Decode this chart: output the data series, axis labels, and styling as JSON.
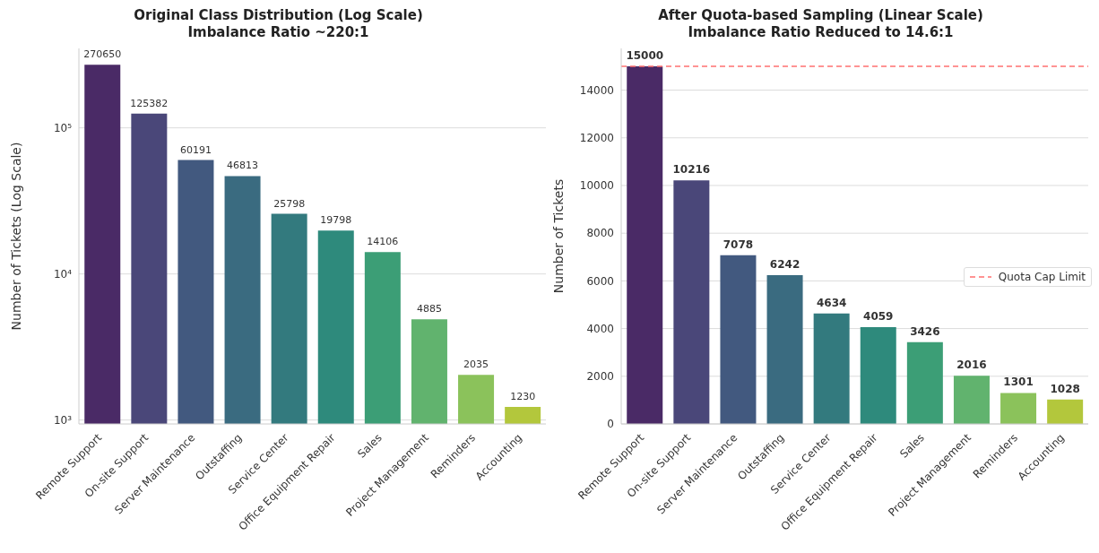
{
  "chart_data": [
    {
      "type": "bar",
      "title": "Original Class Distribution (Log Scale)",
      "subtitle": "Imbalance Ratio ~220:1",
      "ylabel": "Number of Tickets (Log Scale)",
      "categories": [
        "Remote Support",
        "On-site Support",
        "Server Maintenance",
        "Outstaffing",
        "Service Center",
        "Office Equipment Repair",
        "Sales",
        "Project Management",
        "Reminders",
        "Accounting"
      ],
      "values": [
        270650,
        125382,
        60191,
        46813,
        25798,
        19798,
        14106,
        4885,
        2035,
        1230
      ],
      "colors": [
        "#4a2a66",
        "#4a4779",
        "#42597f",
        "#3a6b80",
        "#337a7e",
        "#2e8a7c",
        "#3c9e76",
        "#61b36e",
        "#8bc25b",
        "#b3c73c"
      ],
      "log": "y",
      "ylim": [
        940,
        350000
      ],
      "yticks": [
        {
          "value": 1000,
          "label": "10³"
        },
        {
          "value": 10000,
          "label": "10⁴"
        },
        {
          "value": 100000,
          "label": "10⁵"
        }
      ],
      "grid": "y",
      "data_labels": true
    },
    {
      "type": "bar",
      "title": "After Quota-based Sampling (Linear Scale)",
      "subtitle": "Imbalance Ratio Reduced to 14.6:1",
      "ylabel": "Number of Tickets",
      "categories": [
        "Remote Support",
        "On-site Support",
        "Server Maintenance",
        "Outstaffing",
        "Service Center",
        "Office Equipment Repair",
        "Sales",
        "Project Management",
        "Reminders",
        "Accounting"
      ],
      "values": [
        15000,
        10216,
        7078,
        6242,
        4634,
        4059,
        3426,
        2016,
        1301,
        1028
      ],
      "colors": [
        "#4a2a66",
        "#4a4779",
        "#42597f",
        "#3a6b80",
        "#337a7e",
        "#2e8a7c",
        "#3c9e76",
        "#61b36e",
        "#8bc25b",
        "#b3c73c"
      ],
      "ylim": [
        0,
        15750
      ],
      "yticks": [
        0,
        2000,
        4000,
        6000,
        8000,
        10000,
        12000,
        14000
      ],
      "grid": "y",
      "data_labels": true,
      "legend": "right",
      "ref_lines": [
        {
          "axis": "y",
          "value": 15000,
          "label": "Quota Cap Limit",
          "color": "#ff7070",
          "line_style": "dashed"
        }
      ]
    }
  ]
}
